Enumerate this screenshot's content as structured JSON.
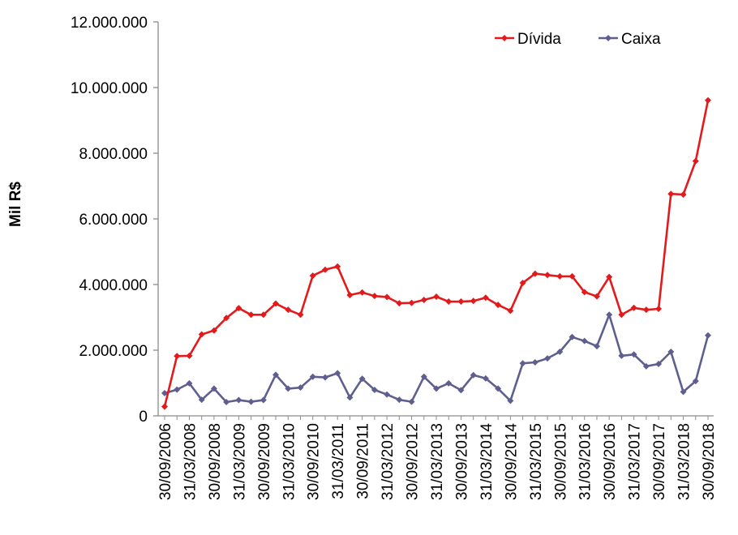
{
  "chart_data": {
    "type": "line",
    "title": "",
    "xlabel": "",
    "ylabel": "Mil R$",
    "ylim": [
      0,
      12000000
    ],
    "yticks": [
      0,
      2000000,
      4000000,
      6000000,
      8000000,
      10000000,
      12000000
    ],
    "ytick_labels": [
      "0",
      "2.000.000",
      "4.000.000",
      "6.000.000",
      "8.000.000",
      "10.000.000",
      "12.000.000"
    ],
    "x_tick_labels": [
      "30/09/2006",
      "31/03/2008",
      "30/09/2008",
      "31/03/2009",
      "30/09/2009",
      "31/03/2010",
      "30/09/2010",
      "31/03/2011",
      "30/09/2011",
      "31/03/2012",
      "30/09/2012",
      "31/03/2013",
      "30/09/2013",
      "31/03/2014",
      "30/09/2014",
      "31/03/2015",
      "30/09/2015",
      "31/03/2016",
      "30/09/2016",
      "31/03/2017",
      "30/09/2017",
      "31/03/2018",
      "30/09/2018"
    ],
    "grid": false,
    "legend_position": "top-right",
    "series": [
      {
        "name": "Dívida",
        "color": "#e31a1c",
        "marker": "diamond",
        "values": [
          280000,
          1820000,
          1830000,
          2480000,
          2600000,
          2980000,
          3280000,
          3080000,
          3080000,
          3420000,
          3230000,
          3080000,
          4270000,
          4450000,
          4550000,
          3680000,
          3760000,
          3650000,
          3620000,
          3430000,
          3440000,
          3530000,
          3630000,
          3480000,
          3480000,
          3500000,
          3600000,
          3380000,
          3200000,
          4050000,
          4330000,
          4290000,
          4250000,
          4250000,
          3770000,
          3640000,
          4230000,
          3080000,
          3290000,
          3230000,
          3260000,
          6760000,
          6740000,
          7760000,
          9610000
        ]
      },
      {
        "name": "Caixa",
        "color": "#5f5f8f",
        "marker": "diamond",
        "values": [
          690000,
          800000,
          990000,
          490000,
          830000,
          420000,
          480000,
          430000,
          480000,
          1250000,
          830000,
          860000,
          1190000,
          1170000,
          1300000,
          560000,
          1130000,
          790000,
          650000,
          490000,
          430000,
          1190000,
          830000,
          990000,
          780000,
          1240000,
          1140000,
          830000,
          460000,
          1600000,
          1630000,
          1750000,
          1950000,
          2400000,
          2280000,
          2120000,
          3080000,
          1830000,
          1870000,
          1510000,
          1580000,
          1950000,
          730000,
          1060000,
          2450000
        ]
      }
    ]
  }
}
